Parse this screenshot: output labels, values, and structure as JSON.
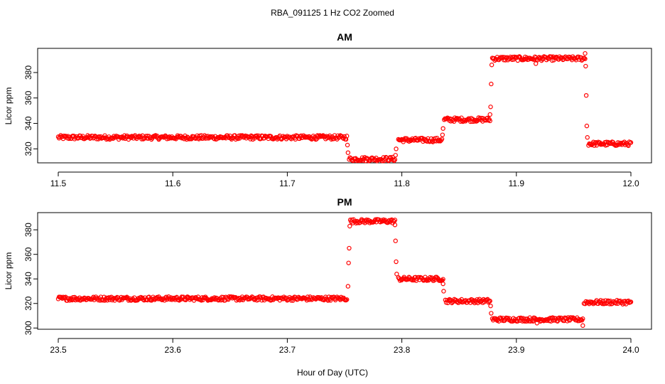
{
  "figure": {
    "title": "RBA_091125  1 Hz CO2 Zoomed",
    "xlabel": "Hour of Day (UTC)"
  },
  "colors": {
    "points": "#ff0000",
    "axes": "#000000"
  },
  "chart_data": [
    {
      "type": "scatter",
      "title": "AM",
      "ylabel": "Licor ppm",
      "xlim": [
        11.5,
        12.0
      ],
      "ylim": [
        309,
        399
      ],
      "xticks": [
        11.5,
        11.6,
        11.7,
        11.8,
        11.9,
        12.0
      ],
      "xtick_labels": [
        "11.5",
        "11.6",
        "11.7",
        "11.8",
        "11.9",
        "12.0"
      ],
      "yticks": [
        320,
        340,
        360,
        380
      ],
      "ytick_labels": [
        "320",
        "340",
        "360",
        "380"
      ],
      "segments": [
        {
          "x0": 11.5,
          "x1": 11.752,
          "y": 329
        },
        {
          "x0": 11.754,
          "x1": 11.794,
          "y": 312
        },
        {
          "x0": 11.797,
          "x1": 11.835,
          "y": 327
        },
        {
          "x0": 11.837,
          "x1": 11.877,
          "y": 343
        },
        {
          "x0": 11.879,
          "x1": 11.96,
          "y": 391
        },
        {
          "x0": 11.963,
          "x1": 12.0,
          "y": 324
        }
      ],
      "transitions": [
        {
          "x": 11.7525,
          "y": 323
        },
        {
          "x": 11.753,
          "y": 317
        },
        {
          "x": 11.7945,
          "y": 315
        },
        {
          "x": 11.795,
          "y": 320
        },
        {
          "x": 11.8355,
          "y": 331
        },
        {
          "x": 11.836,
          "y": 336
        },
        {
          "x": 11.877,
          "y": 347
        },
        {
          "x": 11.8775,
          "y": 353
        },
        {
          "x": 11.878,
          "y": 371
        },
        {
          "x": 11.8785,
          "y": 386
        },
        {
          "x": 11.9605,
          "y": 385
        },
        {
          "x": 11.961,
          "y": 362
        },
        {
          "x": 11.9615,
          "y": 338
        },
        {
          "x": 11.962,
          "y": 329
        },
        {
          "x": 11.96,
          "y": 395
        },
        {
          "x": 11.917,
          "y": 387
        }
      ]
    },
    {
      "type": "scatter",
      "title": "PM",
      "ylabel": "Licor ppm",
      "xlim": [
        23.5,
        24.0
      ],
      "ylim": [
        299,
        394
      ],
      "xticks": [
        23.5,
        23.6,
        23.7,
        23.8,
        23.9,
        24.0
      ],
      "xtick_labels": [
        "23.5",
        "23.6",
        "23.7",
        "23.8",
        "23.9",
        "24.0"
      ],
      "yticks": [
        300,
        320,
        340,
        360,
        380
      ],
      "ytick_labels": [
        "300",
        "320",
        "340",
        "360",
        "380"
      ],
      "segments": [
        {
          "x0": 23.5,
          "x1": 23.752,
          "y": 324
        },
        {
          "x0": 23.755,
          "x1": 23.794,
          "y": 387
        },
        {
          "x0": 23.797,
          "x1": 23.836,
          "y": 340
        },
        {
          "x0": 23.838,
          "x1": 23.877,
          "y": 322
        },
        {
          "x0": 23.879,
          "x1": 23.958,
          "y": 307
        },
        {
          "x0": 23.96,
          "x1": 24.0,
          "y": 321
        }
      ],
      "transitions": [
        {
          "x": 23.753,
          "y": 334
        },
        {
          "x": 23.7535,
          "y": 353
        },
        {
          "x": 23.754,
          "y": 365
        },
        {
          "x": 23.7545,
          "y": 383
        },
        {
          "x": 23.794,
          "y": 384
        },
        {
          "x": 23.7945,
          "y": 371
        },
        {
          "x": 23.795,
          "y": 354
        },
        {
          "x": 23.7955,
          "y": 344
        },
        {
          "x": 23.836,
          "y": 336
        },
        {
          "x": 23.8365,
          "y": 330
        },
        {
          "x": 23.8775,
          "y": 318
        },
        {
          "x": 23.878,
          "y": 312
        },
        {
          "x": 23.958,
          "y": 302
        },
        {
          "x": 23.959,
          "y": 320
        },
        {
          "x": 23.918,
          "y": 304
        }
      ]
    }
  ]
}
